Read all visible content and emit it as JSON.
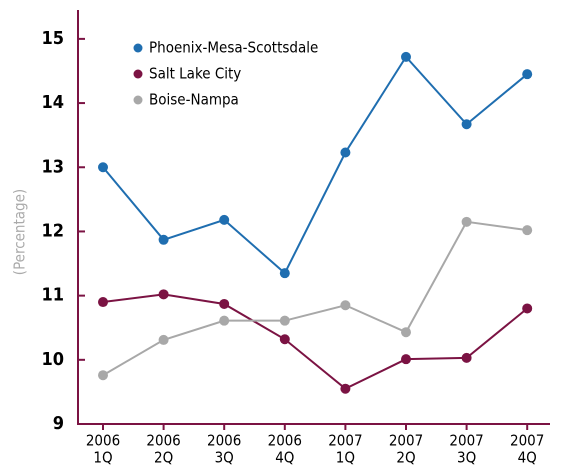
{
  "chart_data": {
    "type": "line",
    "y_label": "(Percentage)",
    "categories": [
      [
        "2006",
        "1Q"
      ],
      [
        "2006",
        "2Q"
      ],
      [
        "2006",
        "3Q"
      ],
      [
        "2006",
        "4Q"
      ],
      [
        "2007",
        "1Q"
      ],
      [
        "2007",
        "2Q"
      ],
      [
        "2007",
        "3Q"
      ],
      [
        "2007",
        "4Q"
      ]
    ],
    "series": [
      {
        "name": "Phoenix-Mesa-Scottsdale",
        "color": "#1f6eb0",
        "values": [
          13.0,
          11.87,
          12.18,
          11.35,
          13.23,
          14.72,
          13.67,
          14.45
        ]
      },
      {
        "name": "Salt Lake City",
        "color": "#7b1343",
        "values": [
          10.9,
          11.02,
          10.87,
          10.32,
          9.55,
          10.01,
          10.03,
          10.8
        ]
      },
      {
        "name": "Boise-Nampa",
        "color": "#a8a8a8",
        "values": [
          9.76,
          10.31,
          10.61,
          10.61,
          10.85,
          10.43,
          12.15,
          12.02
        ]
      }
    ],
    "ylim": [
      9,
      15.45
    ],
    "yticks": [
      9,
      10,
      11,
      12,
      13,
      14,
      15
    ],
    "grid": false,
    "legend": "top-left"
  }
}
